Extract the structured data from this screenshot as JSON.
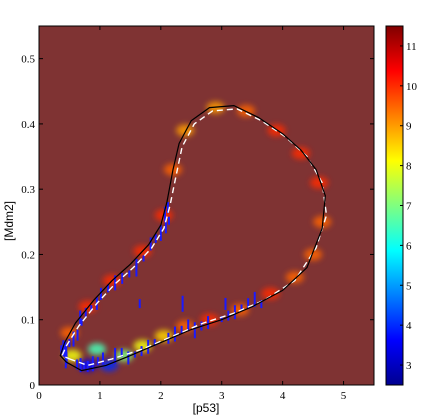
{
  "chart_data": {
    "type": "heatmap",
    "title": "",
    "xlabel": "[p53]",
    "ylabel": "[Mdm2]",
    "xlim": [
      0,
      5.5
    ],
    "ylim": [
      0,
      0.55
    ],
    "x_ticks": [
      0,
      1,
      2,
      3,
      4,
      5
    ],
    "y_ticks": [
      0,
      0.1,
      0.2,
      0.3,
      0.4,
      0.5
    ],
    "colorbar": {
      "range": [
        2.5,
        11.5
      ],
      "ticks": [
        3,
        4,
        5,
        6,
        7,
        8,
        9,
        10,
        11
      ],
      "colormap": "jet"
    },
    "background_color": "#7f3333",
    "limit_cycle": {
      "name": "",
      "color": "#000000",
      "points": [
        [
          0.45,
          0.035
        ],
        [
          0.7,
          0.022
        ],
        [
          1.1,
          0.03
        ],
        [
          1.5,
          0.045
        ],
        [
          2.0,
          0.065
        ],
        [
          2.5,
          0.085
        ],
        [
          3.0,
          0.1
        ],
        [
          3.5,
          0.12
        ],
        [
          4.0,
          0.145
        ],
        [
          4.4,
          0.18
        ],
        [
          4.65,
          0.24
        ],
        [
          4.7,
          0.29
        ],
        [
          4.55,
          0.33
        ],
        [
          4.3,
          0.36
        ],
        [
          4.0,
          0.385
        ],
        [
          3.6,
          0.41
        ],
        [
          3.2,
          0.428
        ],
        [
          2.8,
          0.425
        ],
        [
          2.5,
          0.405
        ],
        [
          2.3,
          0.37
        ],
        [
          2.2,
          0.33
        ],
        [
          2.1,
          0.28
        ],
        [
          2.0,
          0.245
        ],
        [
          1.8,
          0.215
        ],
        [
          1.5,
          0.185
        ],
        [
          1.2,
          0.16
        ],
        [
          0.9,
          0.13
        ],
        [
          0.6,
          0.095
        ],
        [
          0.42,
          0.065
        ],
        [
          0.35,
          0.045
        ],
        [
          0.45,
          0.035
        ]
      ]
    },
    "mean_path": {
      "name": "",
      "color": "#ffffff",
      "points": [
        [
          0.5,
          0.04
        ],
        [
          0.8,
          0.03
        ],
        [
          1.2,
          0.04
        ],
        [
          1.7,
          0.055
        ],
        [
          2.2,
          0.075
        ],
        [
          2.7,
          0.095
        ],
        [
          3.2,
          0.11
        ],
        [
          3.7,
          0.13
        ],
        [
          4.2,
          0.16
        ],
        [
          4.55,
          0.21
        ],
        [
          4.72,
          0.26
        ],
        [
          4.65,
          0.31
        ],
        [
          4.4,
          0.35
        ],
        [
          4.05,
          0.38
        ],
        [
          3.65,
          0.405
        ],
        [
          3.25,
          0.423
        ],
        [
          2.85,
          0.42
        ],
        [
          2.55,
          0.4
        ],
        [
          2.35,
          0.365
        ],
        [
          2.25,
          0.32
        ],
        [
          2.15,
          0.275
        ],
        [
          2.05,
          0.24
        ],
        [
          1.85,
          0.21
        ],
        [
          1.55,
          0.18
        ],
        [
          1.25,
          0.155
        ],
        [
          0.95,
          0.125
        ],
        [
          0.65,
          0.09
        ],
        [
          0.45,
          0.06
        ],
        [
          0.38,
          0.045
        ],
        [
          0.5,
          0.04
        ]
      ]
    },
    "density_blobs": [
      {
        "x": 0.8,
        "y": 0.03,
        "value": 3.5
      },
      {
        "x": 1.15,
        "y": 0.03,
        "value": 4.0
      },
      {
        "x": 0.95,
        "y": 0.055,
        "value": 6.5
      },
      {
        "x": 1.4,
        "y": 0.045,
        "value": 7.0
      },
      {
        "x": 1.7,
        "y": 0.06,
        "value": 8.0
      },
      {
        "x": 2.05,
        "y": 0.075,
        "value": 8.5
      },
      {
        "x": 0.55,
        "y": 0.045,
        "value": 8.0
      },
      {
        "x": 2.4,
        "y": 0.09,
        "value": 9.5
      },
      {
        "x": 2.8,
        "y": 0.1,
        "value": 10.0
      },
      {
        "x": 3.3,
        "y": 0.115,
        "value": 9.5
      },
      {
        "x": 3.8,
        "y": 0.14,
        "value": 10.0
      },
      {
        "x": 4.2,
        "y": 0.165,
        "value": 9.5
      },
      {
        "x": 4.5,
        "y": 0.2,
        "value": 9.5
      },
      {
        "x": 4.65,
        "y": 0.25,
        "value": 9.5
      },
      {
        "x": 4.6,
        "y": 0.31,
        "value": 10.0
      },
      {
        "x": 4.3,
        "y": 0.355,
        "value": 10.0
      },
      {
        "x": 3.9,
        "y": 0.39,
        "value": 10.0
      },
      {
        "x": 3.4,
        "y": 0.42,
        "value": 9.5
      },
      {
        "x": 2.9,
        "y": 0.425,
        "value": 9.0
      },
      {
        "x": 2.4,
        "y": 0.39,
        "value": 9.0
      },
      {
        "x": 2.2,
        "y": 0.33,
        "value": 9.5
      },
      {
        "x": 2.05,
        "y": 0.26,
        "value": 10.0
      },
      {
        "x": 1.7,
        "y": 0.205,
        "value": 10.0
      },
      {
        "x": 1.2,
        "y": 0.16,
        "value": 10.0
      },
      {
        "x": 0.8,
        "y": 0.12,
        "value": 10.0
      },
      {
        "x": 0.5,
        "y": 0.08,
        "value": 9.5
      }
    ]
  }
}
